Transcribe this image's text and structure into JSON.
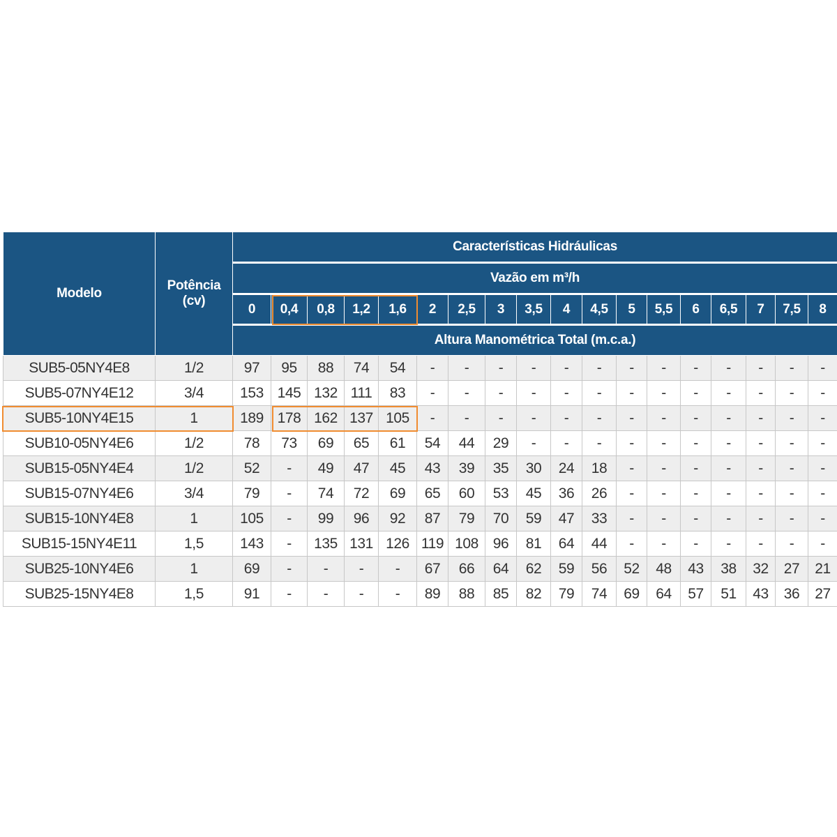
{
  "header": {
    "model_label": "Modelo",
    "power_label_line1": "Potência",
    "power_label_line2": "(cv)",
    "group_title": "Características Hidráulicas",
    "flow_label": "Vazão em m³/h",
    "head_label": "Altura Manométrica Total (m.c.a.)"
  },
  "flows": [
    "0",
    "0,4",
    "0,8",
    "1,2",
    "1,6",
    "2",
    "2,5",
    "3",
    "3,5",
    "4",
    "4,5",
    "5",
    "5,5",
    "6",
    "6,5",
    "7",
    "7,5",
    "8"
  ],
  "rows": [
    {
      "model": "SUB5-05NY4E8",
      "power": "1/2",
      "values": [
        "97",
        "95",
        "88",
        "74",
        "54",
        "-",
        "-",
        "-",
        "-",
        "-",
        "-",
        "-",
        "-",
        "-",
        "-",
        "-",
        "-",
        "-"
      ]
    },
    {
      "model": "SUB5-07NY4E12",
      "power": "3/4",
      "values": [
        "153",
        "145",
        "132",
        "111",
        "83",
        "-",
        "-",
        "-",
        "-",
        "-",
        "-",
        "-",
        "-",
        "-",
        "-",
        "-",
        "-",
        "-"
      ]
    },
    {
      "model": "SUB5-10NY4E15",
      "power": "1",
      "values": [
        "189",
        "178",
        "162",
        "137",
        "105",
        "-",
        "-",
        "-",
        "-",
        "-",
        "-",
        "-",
        "-",
        "-",
        "-",
        "-",
        "-",
        "-"
      ]
    },
    {
      "model": "SUB10-05NY4E6",
      "power": "1/2",
      "values": [
        "78",
        "73",
        "69",
        "65",
        "61",
        "54",
        "44",
        "29",
        "-",
        "-",
        "-",
        "-",
        "-",
        "-",
        "-",
        "-",
        "-",
        "-"
      ]
    },
    {
      "model": "SUB15-05NY4E4",
      "power": "1/2",
      "values": [
        "52",
        "-",
        "49",
        "47",
        "45",
        "43",
        "39",
        "35",
        "30",
        "24",
        "18",
        "-",
        "-",
        "-",
        "-",
        "-",
        "-",
        "-"
      ]
    },
    {
      "model": "SUB15-07NY4E6",
      "power": "3/4",
      "values": [
        "79",
        "-",
        "74",
        "72",
        "69",
        "65",
        "60",
        "53",
        "45",
        "36",
        "26",
        "-",
        "-",
        "-",
        "-",
        "-",
        "-",
        "-"
      ]
    },
    {
      "model": "SUB15-10NY4E8",
      "power": "1",
      "values": [
        "105",
        "-",
        "99",
        "96",
        "92",
        "87",
        "79",
        "70",
        "59",
        "47",
        "33",
        "-",
        "-",
        "-",
        "-",
        "-",
        "-",
        "-"
      ]
    },
    {
      "model": "SUB15-15NY4E11",
      "power": "1,5",
      "values": [
        "143",
        "-",
        "135",
        "131",
        "126",
        "119",
        "108",
        "96",
        "81",
        "64",
        "44",
        "-",
        "-",
        "-",
        "-",
        "-",
        "-",
        "-"
      ]
    },
    {
      "model": "SUB25-10NY4E6",
      "power": "1",
      "values": [
        "69",
        "-",
        "-",
        "-",
        "-",
        "67",
        "66",
        "64",
        "62",
        "59",
        "56",
        "52",
        "48",
        "43",
        "38",
        "32",
        "27",
        "21"
      ]
    },
    {
      "model": "SUB25-15NY4E8",
      "power": "1,5",
      "values": [
        "91",
        "-",
        "-",
        "-",
        "-",
        "89",
        "88",
        "85",
        "82",
        "79",
        "74",
        "69",
        "64",
        "57",
        "51",
        "43",
        "36",
        "27"
      ]
    }
  ],
  "highlight": {
    "color": "#f08c30",
    "flow_columns": [
      "0,4",
      "0,8",
      "1,2",
      "1,6"
    ],
    "row_model": "SUB5-10NY4E15"
  }
}
